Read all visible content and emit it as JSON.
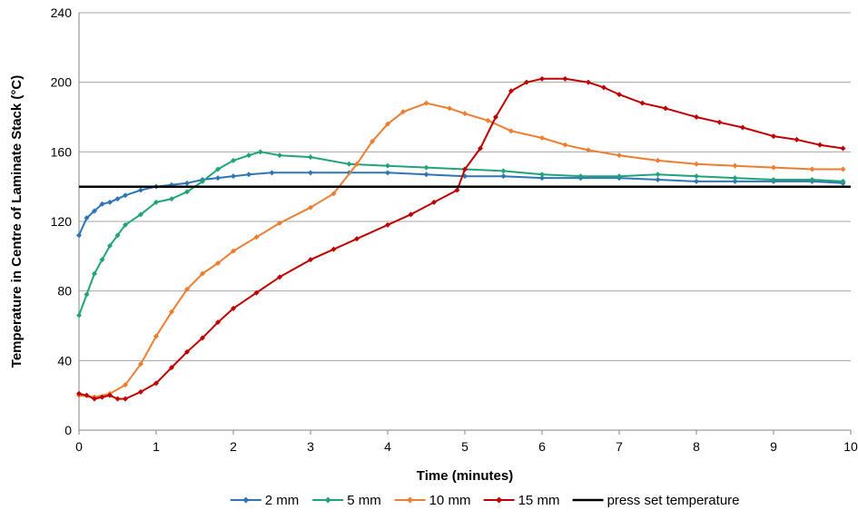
{
  "chart_data": {
    "type": "line",
    "xlabel": "Time (minutes)",
    "ylabel": "Temperature in Centre of Laminate Stack (°C)",
    "xlim": [
      0,
      10
    ],
    "ylim": [
      0,
      240
    ],
    "xticks": [
      0,
      1,
      2,
      3,
      4,
      5,
      6,
      7,
      8,
      9,
      10
    ],
    "yticks": [
      0,
      40,
      80,
      120,
      160,
      200,
      240
    ],
    "grid": "horizontal",
    "legend_position": "bottom",
    "series": [
      {
        "name": "2 mm",
        "color": "#2E75B6",
        "marker": "diamond",
        "x": [
          0,
          0.1,
          0.2,
          0.3,
          0.4,
          0.5,
          0.6,
          0.8,
          1.0,
          1.2,
          1.4,
          1.6,
          1.8,
          2.0,
          2.2,
          2.5,
          3.0,
          3.5,
          4.0,
          4.5,
          5.0,
          5.5,
          6.0,
          6.5,
          7.0,
          7.5,
          8.0,
          8.5,
          9.0,
          9.5,
          9.9
        ],
        "y": [
          112,
          122,
          126,
          130,
          131,
          133,
          135,
          138,
          140,
          141,
          142,
          144,
          145,
          146,
          147,
          148,
          148,
          148,
          148,
          147,
          146,
          146,
          145,
          145,
          145,
          144,
          143,
          143,
          143,
          143,
          142
        ]
      },
      {
        "name": "5 mm",
        "color": "#1FA37A",
        "marker": "diamond",
        "x": [
          0,
          0.1,
          0.2,
          0.3,
          0.4,
          0.5,
          0.6,
          0.8,
          1.0,
          1.2,
          1.4,
          1.6,
          1.8,
          2.0,
          2.2,
          2.35,
          2.6,
          3.0,
          3.5,
          4.0,
          4.5,
          5.0,
          5.5,
          6.0,
          6.5,
          7.0,
          7.5,
          8.0,
          8.5,
          9.0,
          9.5,
          9.9
        ],
        "y": [
          66,
          78,
          90,
          98,
          106,
          112,
          118,
          124,
          131,
          133,
          137,
          143,
          150,
          155,
          158,
          160,
          158,
          157,
          153,
          152,
          151,
          150,
          149,
          147,
          146,
          146,
          147,
          146,
          145,
          144,
          144,
          143
        ]
      },
      {
        "name": "10 mm",
        "color": "#ED7D31",
        "marker": "diamond",
        "x": [
          0,
          0.2,
          0.4,
          0.6,
          0.8,
          1.0,
          1.2,
          1.4,
          1.6,
          1.8,
          2.0,
          2.3,
          2.6,
          3.0,
          3.3,
          3.6,
          3.8,
          4.0,
          4.2,
          4.5,
          4.8,
          5.0,
          5.3,
          5.6,
          6.0,
          6.3,
          6.6,
          7.0,
          7.5,
          8.0,
          8.5,
          9.0,
          9.5,
          9.9
        ],
        "y": [
          20,
          19,
          21,
          26,
          38,
          54,
          68,
          81,
          90,
          96,
          103,
          111,
          119,
          128,
          136,
          153,
          166,
          176,
          183,
          188,
          185,
          182,
          178,
          172,
          168,
          164,
          161,
          158,
          155,
          153,
          152,
          151,
          150,
          150
        ]
      },
      {
        "name": "15 mm",
        "color": "#C00000",
        "marker": "diamond",
        "x": [
          0,
          0.1,
          0.2,
          0.3,
          0.4,
          0.5,
          0.6,
          0.8,
          1.0,
          1.2,
          1.4,
          1.6,
          1.8,
          2.0,
          2.3,
          2.6,
          3.0,
          3.3,
          3.6,
          4.0,
          4.3,
          4.6,
          4.9,
          5.0,
          5.2,
          5.4,
          5.6,
          5.8,
          6.0,
          6.3,
          6.6,
          6.8,
          7.0,
          7.3,
          7.6,
          8.0,
          8.3,
          8.6,
          9.0,
          9.3,
          9.6,
          9.9
        ],
        "y": [
          21,
          20,
          18,
          19,
          20,
          18,
          18,
          22,
          27,
          36,
          45,
          53,
          62,
          70,
          79,
          88,
          98,
          104,
          110,
          118,
          124,
          131,
          138,
          150,
          162,
          180,
          195,
          200,
          202,
          202,
          200,
          197,
          193,
          188,
          185,
          180,
          177,
          174,
          169,
          167,
          164,
          162
        ]
      },
      {
        "name": "press set temperature",
        "color": "#000000",
        "marker": "none",
        "x": [
          0,
          10
        ],
        "y": [
          140,
          140
        ]
      }
    ]
  }
}
